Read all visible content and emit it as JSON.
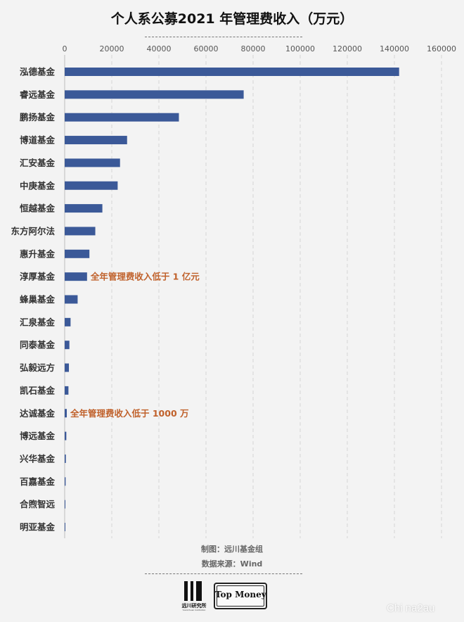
{
  "chart_data": {
    "type": "bar",
    "orientation": "horizontal",
    "title": "个人系公募2021 年管理费收入（万元）",
    "categories": [
      "泓德基金",
      "睿远基金",
      "鹏扬基金",
      "博道基金",
      "汇安基金",
      "中庚基金",
      "恒越基金",
      "东方阿尔法",
      "惠升基金",
      "淳厚基金",
      "蜂巢基金",
      "汇泉基金",
      "同泰基金",
      "弘毅远方",
      "凯石基金",
      "达诚基金",
      "博远基金",
      "兴华基金",
      "百嘉基金",
      "合煦智远",
      "明亚基金"
    ],
    "values": [
      142000,
      76000,
      48500,
      26500,
      23500,
      22500,
      16000,
      13000,
      10500,
      9500,
      5500,
      2500,
      2000,
      1800,
      1600,
      900,
      700,
      500,
      400,
      300,
      200
    ],
    "xlim": [
      0,
      160000
    ],
    "x_ticks": [
      0,
      20000,
      40000,
      60000,
      80000,
      100000,
      120000,
      140000,
      160000
    ],
    "x_axis_position": "top",
    "grid": "vertical dashed",
    "bar_color": "#3b5998",
    "annotations": [
      {
        "after_category": "淳厚基金",
        "text": "全年管理费收入低于 1 亿元",
        "color": "#c0612b"
      },
      {
        "after_category": "达诚基金",
        "text": "全年管理费收入低于 1000 万",
        "color": "#c0612b"
      }
    ]
  },
  "footer": {
    "maker": "制图：远川基金组",
    "source": "数据来源：Wind"
  },
  "logos": {
    "yuanchuan": "远川研究所",
    "yuanchuan_sub": "YuanChuan Institution",
    "topmoney": "Top Money"
  },
  "watermark": "Chi na2au"
}
